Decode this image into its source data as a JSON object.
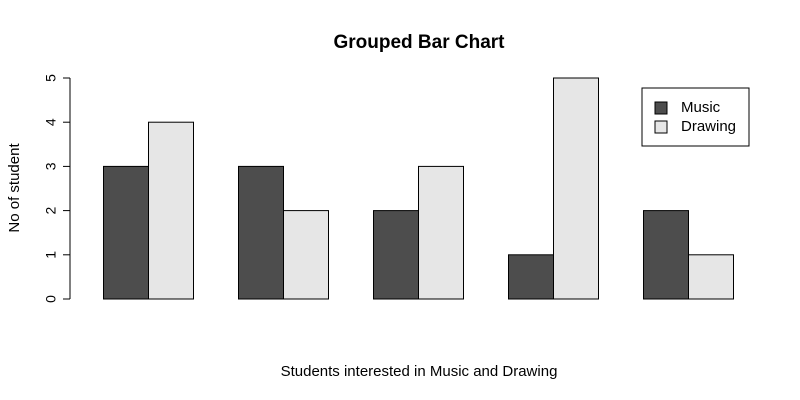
{
  "chart_data": {
    "type": "bar",
    "title": "Grouped Bar Chart",
    "xlabel": "Students interested in Music and Drawing",
    "ylabel": "No of student",
    "ylim": [
      0,
      5
    ],
    "yticks": [
      "0",
      "1",
      "2",
      "3",
      "4",
      "5"
    ],
    "grid": false,
    "legend_position": "top-right",
    "series": [
      {
        "name": "Music",
        "color": "#4d4d4d",
        "values": [
          3,
          3,
          2,
          1,
          2
        ]
      },
      {
        "name": "Drawing",
        "color": "#e6e6e6",
        "values": [
          4,
          2,
          3,
          5,
          1
        ]
      }
    ]
  }
}
